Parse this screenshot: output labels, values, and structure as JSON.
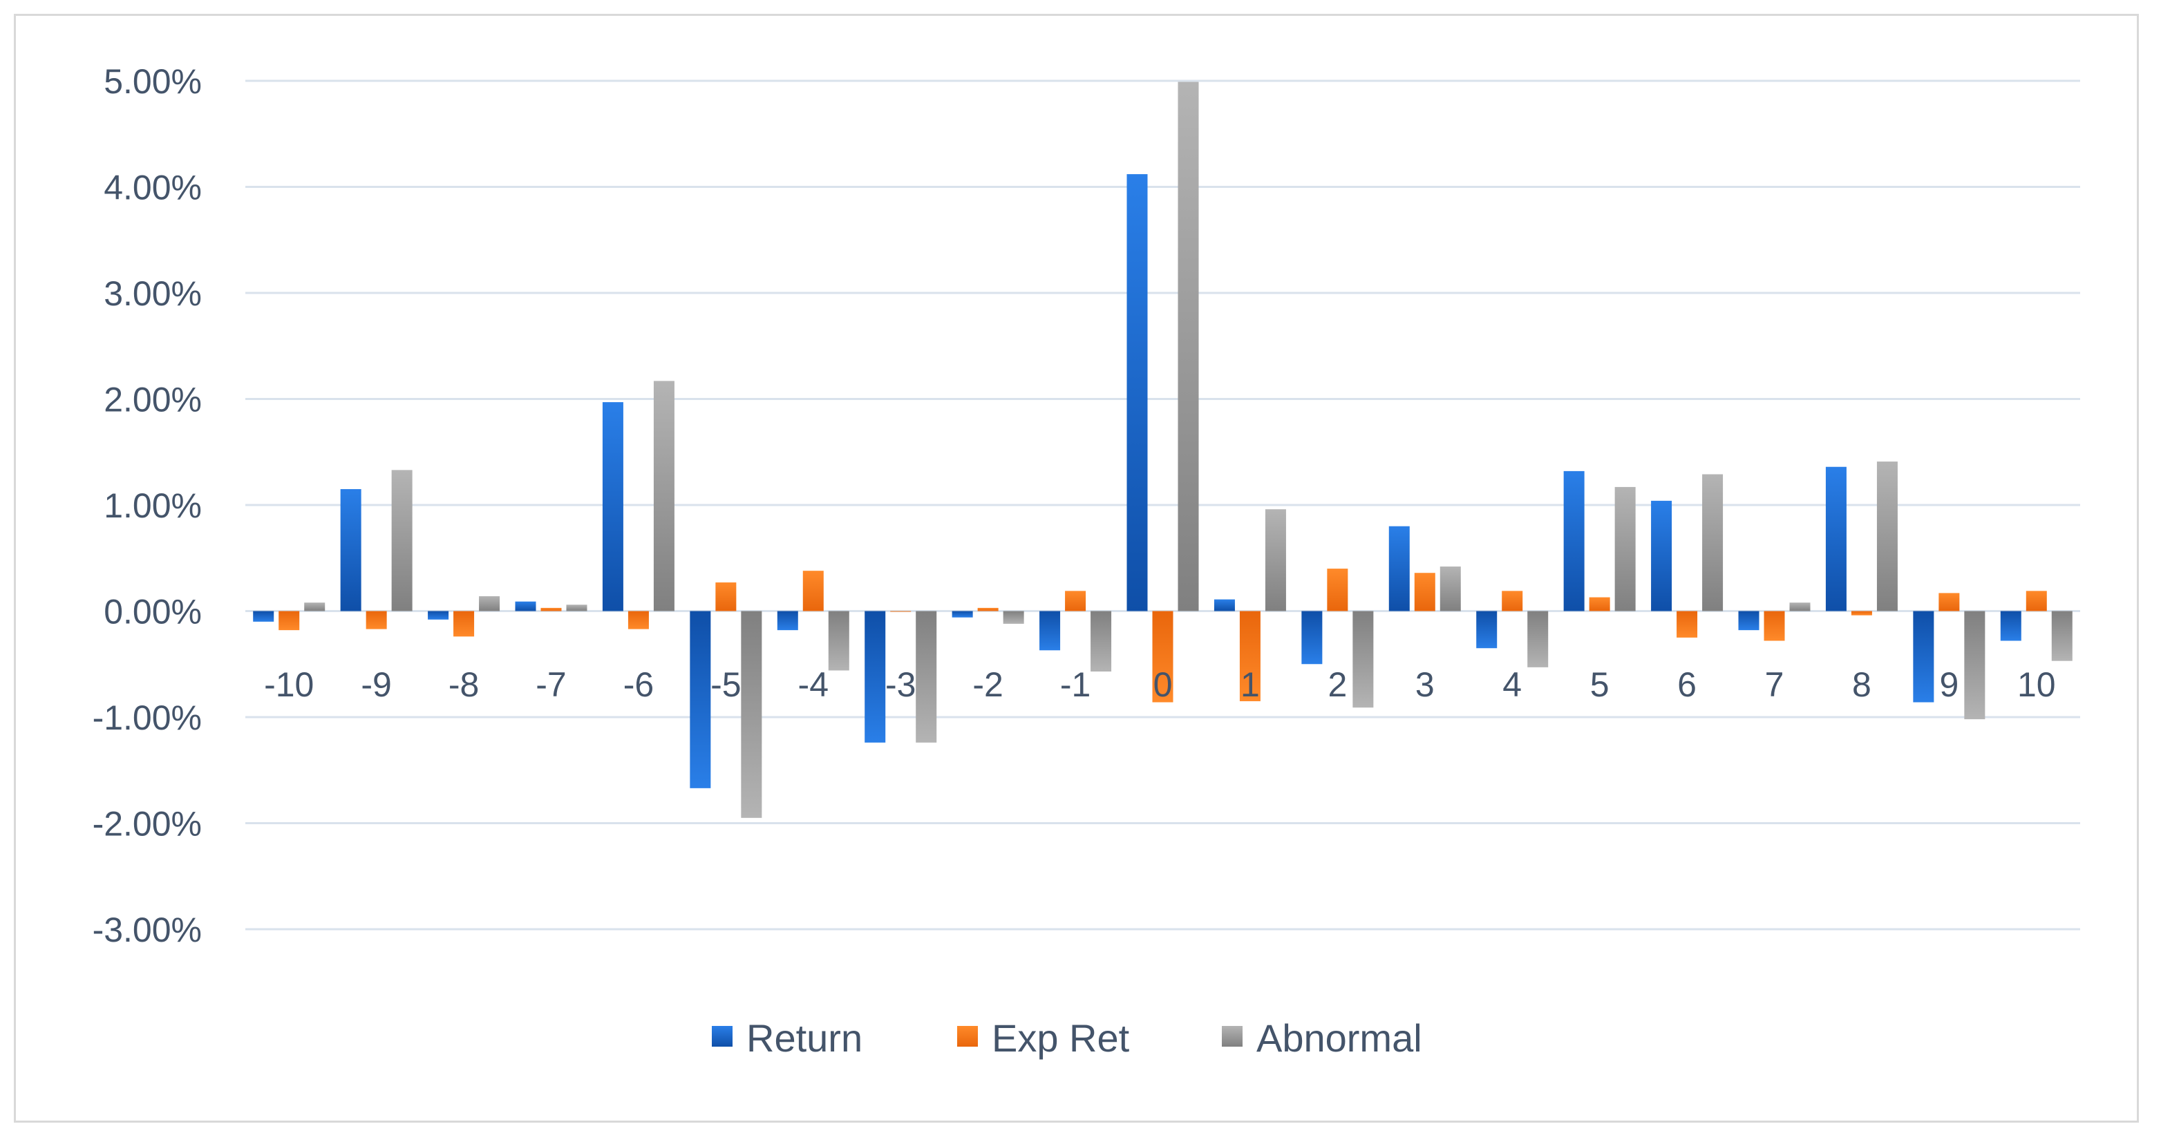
{
  "chart_data": {
    "type": "bar",
    "categories": [
      "-10",
      "-9",
      "-8",
      "-7",
      "-6",
      "-5",
      "-4",
      "-3",
      "-2",
      "-1",
      "0",
      "1",
      "2",
      "3",
      "4",
      "5",
      "6",
      "7",
      "8",
      "9",
      "10"
    ],
    "series": [
      {
        "name": "Return",
        "color": "#1f6fd1",
        "values": [
          -0.1,
          1.15,
          -0.08,
          0.09,
          1.97,
          -1.67,
          -0.18,
          -1.24,
          -0.06,
          -0.37,
          4.12,
          0.11,
          -0.5,
          0.8,
          -0.35,
          1.32,
          1.04,
          -0.18,
          1.36,
          -0.86,
          -0.28
        ]
      },
      {
        "name": "Exp Ret",
        "color": "#f47b20",
        "values": [
          -0.18,
          -0.17,
          -0.24,
          0.03,
          -0.17,
          0.27,
          0.38,
          0.0,
          0.03,
          0.19,
          -0.86,
          -0.85,
          0.4,
          0.36,
          0.19,
          0.13,
          -0.25,
          -0.28,
          -0.04,
          0.17,
          0.19
        ]
      },
      {
        "name": "Abnormal",
        "color": "#9b9b9b",
        "values": [
          0.08,
          1.33,
          0.14,
          0.06,
          2.17,
          -1.95,
          -0.56,
          -1.24,
          -0.12,
          -0.57,
          4.99,
          0.96,
          -0.91,
          0.42,
          -0.53,
          1.17,
          1.29,
          0.08,
          1.41,
          -1.02,
          -0.47
        ]
      }
    ],
    "y_ticks": [
      "5.00%",
      "4.00%",
      "3.00%",
      "2.00%",
      "1.00%",
      "0.00%",
      "-1.00%",
      "-2.00%",
      "-3.00%"
    ],
    "ylim": [
      -3,
      5
    ],
    "legend_position": "bottom",
    "grid": true
  }
}
